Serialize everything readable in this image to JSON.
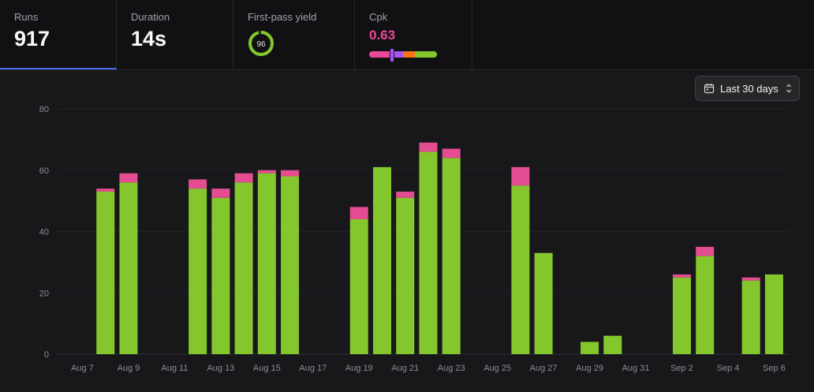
{
  "stats": {
    "runs": {
      "label": "Runs",
      "value": "917"
    },
    "duration": {
      "label": "Duration",
      "value": "14s"
    },
    "yield": {
      "label": "First-pass yield",
      "value": "96",
      "percent": 96
    },
    "cpk": {
      "label": "Cpk",
      "value": "0.63"
    }
  },
  "range_button": {
    "label": "Last 30 days"
  },
  "colors": {
    "pass": "#84c72d",
    "fail": "#e44d91",
    "accent": "#4f6bed"
  },
  "chart_data": {
    "type": "bar",
    "stacked": true,
    "ylim": [
      0,
      80
    ],
    "yticks": [
      0,
      20,
      40,
      60,
      80
    ],
    "categories": [
      "Aug 7",
      "Aug 8",
      "Aug 9",
      "Aug 10",
      "Aug 11",
      "Aug 12",
      "Aug 13",
      "Aug 14",
      "Aug 15",
      "Aug 16",
      "Aug 17",
      "Aug 18",
      "Aug 19",
      "Aug 20",
      "Aug 21",
      "Aug 22",
      "Aug 23",
      "Aug 24",
      "Aug 25",
      "Aug 26",
      "Aug 27",
      "Aug 28",
      "Aug 29",
      "Aug 30",
      "Aug 31",
      "Sep 1",
      "Sep 2",
      "Sep 3",
      "Sep 4",
      "Sep 5",
      "Sep 6"
    ],
    "xtick_labels": [
      "Aug 7",
      "Aug 9",
      "Aug 11",
      "Aug 13",
      "Aug 15",
      "Aug 17",
      "Aug 19",
      "Aug 21",
      "Aug 23",
      "Aug 25",
      "Aug 27",
      "Aug 29",
      "Aug 31",
      "Sep 2",
      "Sep 4",
      "Sep 6"
    ],
    "series": [
      {
        "values": [
          0,
          53,
          56,
          0,
          0,
          54,
          51,
          56,
          59,
          58,
          0,
          0,
          44,
          61,
          51,
          66,
          64,
          0,
          0,
          55,
          33,
          0,
          4,
          6,
          0,
          0,
          25,
          32,
          0,
          24,
          26
        ]
      },
      {
        "values": [
          0,
          1,
          3,
          0,
          0,
          3,
          3,
          3,
          1,
          2,
          0,
          0,
          4,
          0,
          2,
          3,
          3,
          0,
          0,
          6,
          0,
          0,
          0,
          0,
          0,
          0,
          1,
          3,
          0,
          1,
          0
        ]
      }
    ],
    "grid": true
  }
}
